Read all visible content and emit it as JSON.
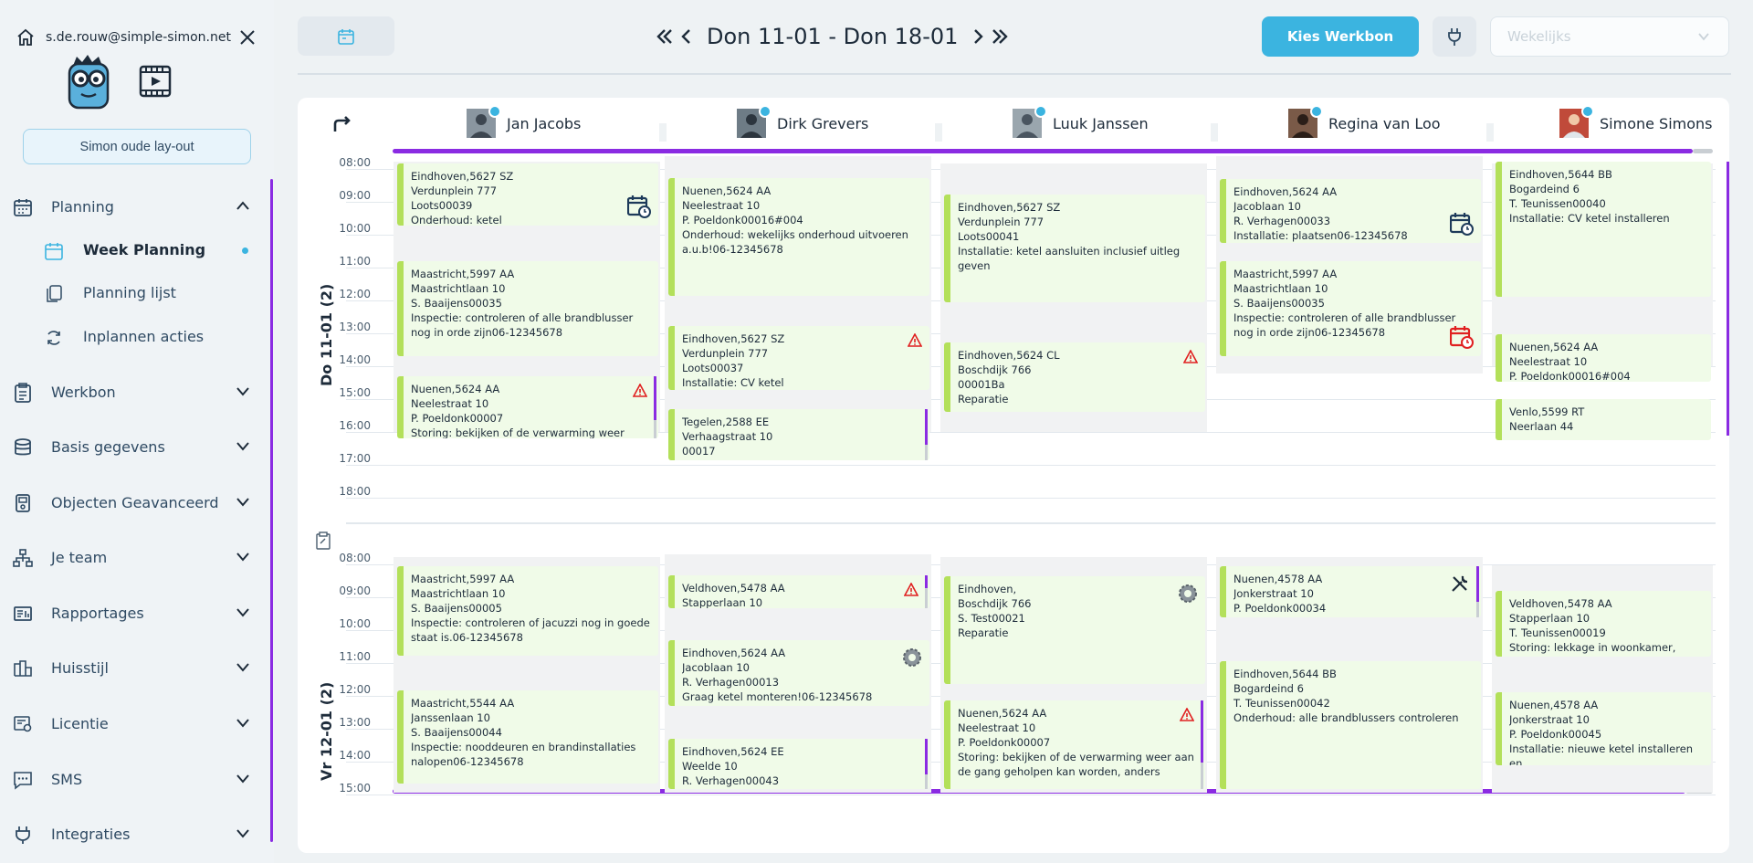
{
  "user": {
    "email": "s.de.rouw@simple-simon.net"
  },
  "sidebar": {
    "old_layout": "Simon oude lay-out",
    "planning": "Planning",
    "sub": [
      {
        "label": "Week Planning"
      },
      {
        "label": "Planning lijst"
      },
      {
        "label": "Inplannen acties"
      }
    ],
    "items": [
      {
        "label": "Werkbon"
      },
      {
        "label": "Basis gegevens"
      },
      {
        "label": "Objecten Geavanceerd"
      },
      {
        "label": "Je team"
      },
      {
        "label": "Rapportages"
      },
      {
        "label": "Huisstijl"
      },
      {
        "label": "Licentie"
      },
      {
        "label": "SMS"
      },
      {
        "label": "Integraties"
      }
    ]
  },
  "toolbar": {
    "date_range": "Don 11-01 - Don 18-01",
    "kies_werkbon": "Kies Werkbon",
    "period": "Wekelijks"
  },
  "employees": [
    {
      "name": "Jan Jacobs"
    },
    {
      "name": "Dirk Grevers"
    },
    {
      "name": "Luuk Janssen"
    },
    {
      "name": "Regina van Loo"
    },
    {
      "name": "Simone Simons"
    }
  ],
  "days": [
    {
      "label": "Do 11-01 (2)",
      "times": [
        "08:00",
        "09:00",
        "10:00",
        "11:00",
        "12:00",
        "13:00",
        "14:00",
        "15:00",
        "16:00",
        "17:00",
        "18:00"
      ]
    },
    {
      "label": "Vr 12-01 (2)",
      "times": [
        "08:00",
        "09:00",
        "10:00",
        "11:00",
        "12:00",
        "13:00",
        "14:00",
        "15:00"
      ]
    }
  ],
  "cards": [
    {
      "lines": [
        "Eindhoven,5627 SZ",
        "Verdunplein 777",
        "Loots00039",
        "Onderhoud: ketel"
      ]
    },
    {
      "lines": [
        "Maastricht,5997 AA",
        "Maastrichtlaan 10",
        "S. Baaijens00035",
        "Inspectie: controleren of alle brandblusser nog in orde zijn06-12345678"
      ]
    },
    {
      "lines": [
        "Nuenen,5624 AA",
        "Neelestraat 10",
        "P. Poeldonk00007",
        "Storing: bekijken of de verwarming weer"
      ]
    },
    {
      "lines": [
        "Nuenen,5624 AA",
        "Neelestraat 10",
        "P. Poeldonk00016#004",
        "Onderhoud: wekelijks onderhoud uitvoeren a.u.b!06-12345678"
      ]
    },
    {
      "lines": [
        "Eindhoven,5627 SZ",
        "Verdunplein 777",
        "Loots00037",
        "Installatie: CV ketel"
      ]
    },
    {
      "lines": [
        "Tegelen,2588 EE",
        "Verhaagstraat 10",
        "00017"
      ]
    },
    {
      "lines": [
        "Eindhoven,5627 SZ",
        "Verdunplein 777",
        "Loots00041",
        "Installatie: ketel aansluiten inclusief uitleg geven"
      ]
    },
    {
      "lines": [
        "Eindhoven,5624 CL",
        "Boschdijk 766",
        "00001Ba",
        "Reparatie"
      ]
    },
    {
      "lines": [
        "Eindhoven,5624 AA",
        "Jacoblaan 10",
        "R. Verhagen00033",
        "Installatie: plaatsen06-12345678"
      ]
    },
    {
      "lines": [
        "Maastricht,5997 AA",
        "Maastrichtlaan 10",
        "S. Baaijens00035",
        "Inspectie: controleren of alle brandblusser nog in orde zijn06-12345678"
      ]
    },
    {
      "lines": [
        "Eindhoven,5644 BB",
        "Bogardeind 6",
        "T. Teunissen00040",
        "Installatie: CV ketel installeren"
      ]
    },
    {
      "lines": [
        "Nuenen,5624 AA",
        "Neelestraat 10",
        "P. Poeldonk00016#004"
      ]
    },
    {
      "lines": [
        "Venlo,5599 RT",
        "Neerlaan 44"
      ]
    },
    {
      "lines": [
        "Maastricht,5997 AA",
        "Maastrichtlaan 10",
        "S. Baaijens00005",
        "Inspectie: controleren of jacuzzi nog in goede staat is.06-12345678"
      ]
    },
    {
      "lines": [
        "Maastricht,5544 AA",
        "Janssenlaan 10",
        "S. Baaijens00044",
        "Inspectie: nooddeuren en brandinstallaties nalopen06-12345678"
      ]
    },
    {
      "lines": [
        "Veldhoven,5478 AA",
        "Stapperlaan 10"
      ]
    },
    {
      "lines": [
        "Eindhoven,5624 AA",
        "Jacoblaan 10",
        "R. Verhagen00013",
        "Graag ketel monteren!06-12345678"
      ]
    },
    {
      "lines": [
        "Eindhoven,5624 EE",
        "Weelde 10",
        "R. Verhagen00043"
      ]
    },
    {
      "lines": [
        "Eindhoven,",
        "Boschdijk 766",
        "S. Test00021",
        "Reparatie"
      ]
    },
    {
      "lines": [
        "Nuenen,5624 AA",
        "Neelestraat 10",
        "P. Poeldonk00007",
        "Storing: bekijken of de verwarming weer aan de gang geholpen kan worden, anders"
      ]
    },
    {
      "lines": [
        "Nuenen,4578 AA",
        "Jonkerstraat 10",
        "P. Poeldonk00034"
      ]
    },
    {
      "lines": [
        "Eindhoven,5644 BB",
        "Bogardeind 6",
        "T. Teunissen00042",
        "Onderhoud: alle brandblussers controleren"
      ]
    },
    {
      "lines": [
        "Veldhoven,5478 AA",
        "Stapperlaan 10",
        "T. Teunissen00019",
        "Storing: lekkage in woonkamer, klant"
      ]
    },
    {
      "lines": [
        "Nuenen,4578 AA",
        "Jonkerstraat 10",
        "P. Poeldonk00045",
        "Installatie: nieuwe ketel installeren en"
      ]
    }
  ],
  "colors": {
    "accent": "#3bb4e0",
    "purple": "#8a2be2",
    "card_bg": "#f0fbe8",
    "lime": "#b3e05a",
    "green": "#22cc44",
    "red": "#e02020"
  }
}
